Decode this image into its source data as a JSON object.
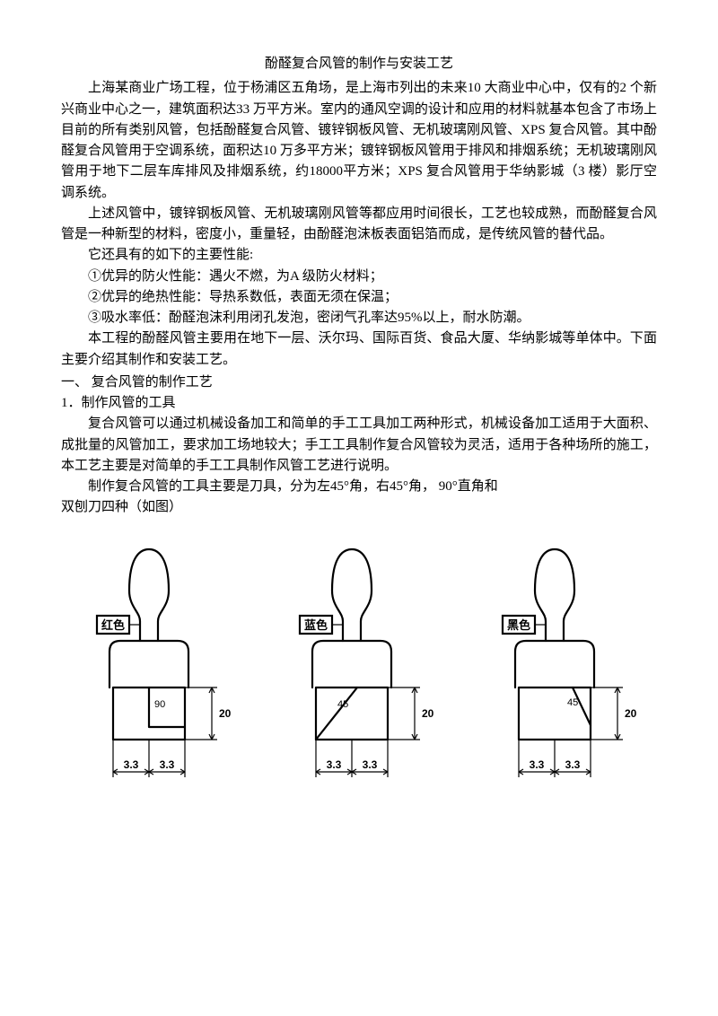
{
  "title": "酚醛复合风管的制作与安装工艺",
  "paragraphs": {
    "p1": "上海某商业广场工程，位于杨浦区五角场，是上海市列出的未来10 大商业中心中，仅有的2 个新兴商业中心之一，建筑面积达33 万平方米。室内的通风空调的设计和应用的材料就基本包含了市场上目前的所有类别风管，包括酚醛复合风管、镀锌钢板风管、无机玻璃刚风管、XPS 复合风管。其中酚醛复合风管用于空调系统，面积达10 万多平方米；镀锌钢板风管用于排风和排烟系统；无机玻璃刚风管用于地下二层车库排风及排烟系统，约18000平方米；XPS 复合风管用于华纳影城（3 楼）影厅空调系统。",
    "p2": "上述风管中，镀锌钢板风管、无机玻璃刚风管等都应用时间很长，工艺也较成熟，而酚醛复合风管是一种新型的材料，密度小，重量轻，由酚醛泡沫板表面铝箔而成，是传统风管的替代品。",
    "p3": "它还具有的如下的主要性能:",
    "p4": "①优异的防火性能：遇火不燃，为A 级防火材料；",
    "p5": "②优异的绝热性能：导热系数低，表面无须在保温；",
    "p6": "③吸水率低：酚醛泡沫利用闭孔发泡，密闭气孔率达95%以上，耐水防潮。",
    "p7": "本工程的酚醛风管主要用在地下一层、沃尔玛、国际百货、食品大厦、华纳影城等单体中。下面主要介绍其制作和安装工艺。",
    "h1": "一、 复合风管的制作工艺",
    "h2": "1．制作风管的工具",
    "p8": "复合风管可以通过机械设备加工和简单的手工工具加工两种形式，机械设备加工适用于大面积、成批量的风管加工，要求加工场地较大；手工工具制作复合风管较为灵活，适用于各种场所的施工，本工艺主要是对简单的手工工具制作风管工艺进行说明。",
    "p9a": "制作复合风管的工具主要是刀具，分为左45°角，右45°角， 90°直角和",
    "p9b": "双刨刀四种（如图）"
  },
  "diagrams": {
    "items": [
      {
        "label": "红色",
        "angle_label": "90",
        "cut_shape": "right90",
        "dim_v": "20",
        "dim_h": "3.3"
      },
      {
        "label": "蓝色",
        "angle_label": "45",
        "cut_shape": "left45",
        "dim_v": "20",
        "dim_h": "3.3"
      },
      {
        "label": "黑色",
        "angle_label": "45",
        "cut_shape": "right45",
        "dim_v": "20",
        "dim_h": "3.3"
      }
    ],
    "stroke": "#000000",
    "stroke_width": 2.2,
    "thin_stroke_width": 1.2,
    "label_fontsize": 13,
    "dim_fontsize": 12
  }
}
